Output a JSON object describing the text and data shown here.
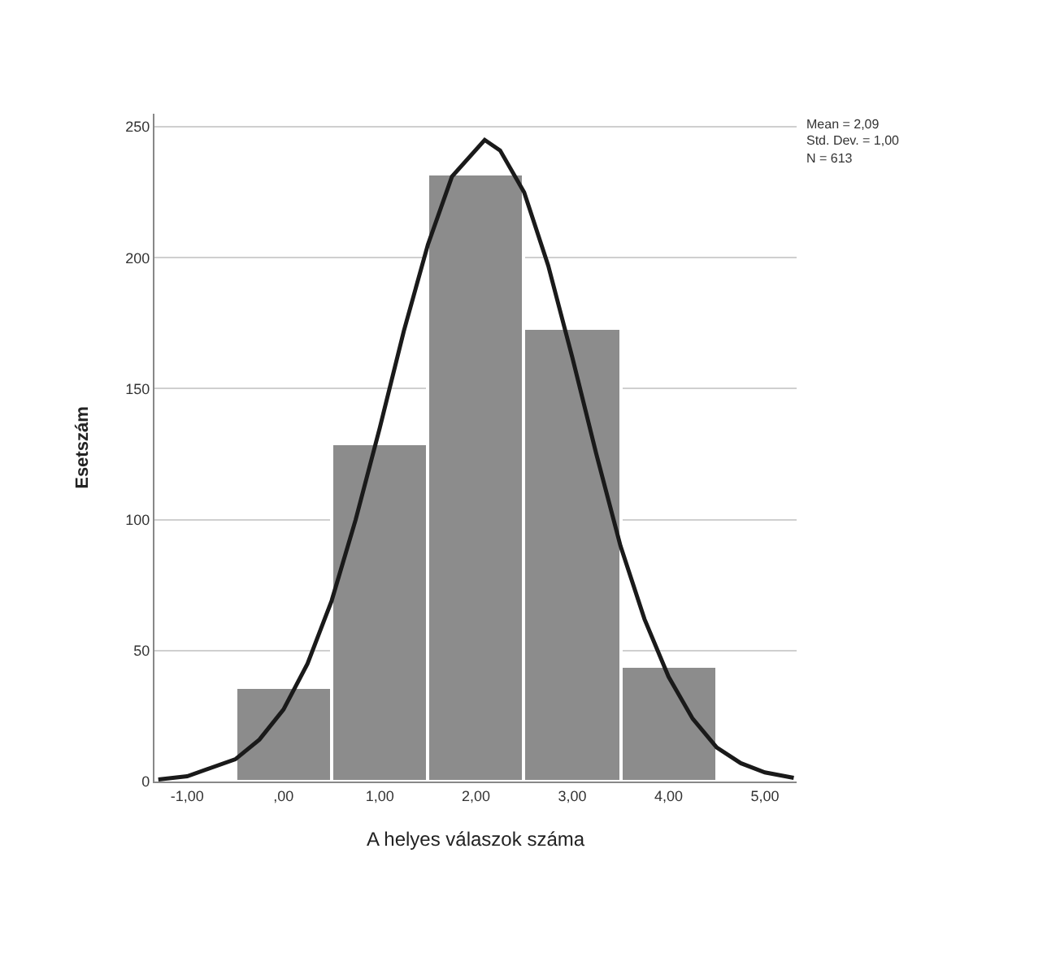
{
  "chart_data": {
    "type": "histogram",
    "xlabel": "A helyes válaszok száma",
    "ylabel": "Esetszám",
    "bins": [
      -0.5,
      0.5,
      1.5,
      2.5,
      3.5,
      4.5
    ],
    "values": [
      36,
      129,
      232,
      173,
      44
    ],
    "color": "#8c8c8c",
    "series": [
      {
        "type": "line",
        "color": "#1a1a1a",
        "x": [
          -1.3,
          -1,
          -0.5,
          -0.25,
          0,
          0.25,
          0.5,
          0.75,
          1,
          1.25,
          1.5,
          1.75,
          2.09,
          2.25,
          2.5,
          2.75,
          3,
          3.25,
          3.5,
          3.75,
          4,
          4.25,
          4.5,
          4.75,
          5,
          5.3
        ],
        "values": [
          0.8,
          2,
          8.5,
          16,
          27.5,
          45,
          69,
          100,
          135,
          172,
          205,
          231,
          245,
          241,
          225,
          197,
          162,
          125,
          90,
          62,
          40,
          24,
          13,
          7,
          3.5,
          1.4
        ]
      }
    ],
    "xlim": [
      -1.34,
      5.33
    ],
    "xticks": [
      {
        "value": -1,
        "label": "-1,00"
      },
      {
        "value": 0,
        "label": ",00"
      },
      {
        "value": 1,
        "label": "1,00"
      },
      {
        "value": 2,
        "label": "2,00"
      },
      {
        "value": 3,
        "label": "3,00"
      },
      {
        "value": 4,
        "label": "4,00"
      },
      {
        "value": 5,
        "label": "5,00"
      }
    ],
    "ylim": [
      0,
      255
    ],
    "yticks": [
      0,
      50,
      100,
      150,
      200,
      250
    ],
    "grid": "y",
    "annotations": [
      "Mean = 2,09",
      "Std. Dev. = 1,00",
      "N = 613"
    ]
  }
}
